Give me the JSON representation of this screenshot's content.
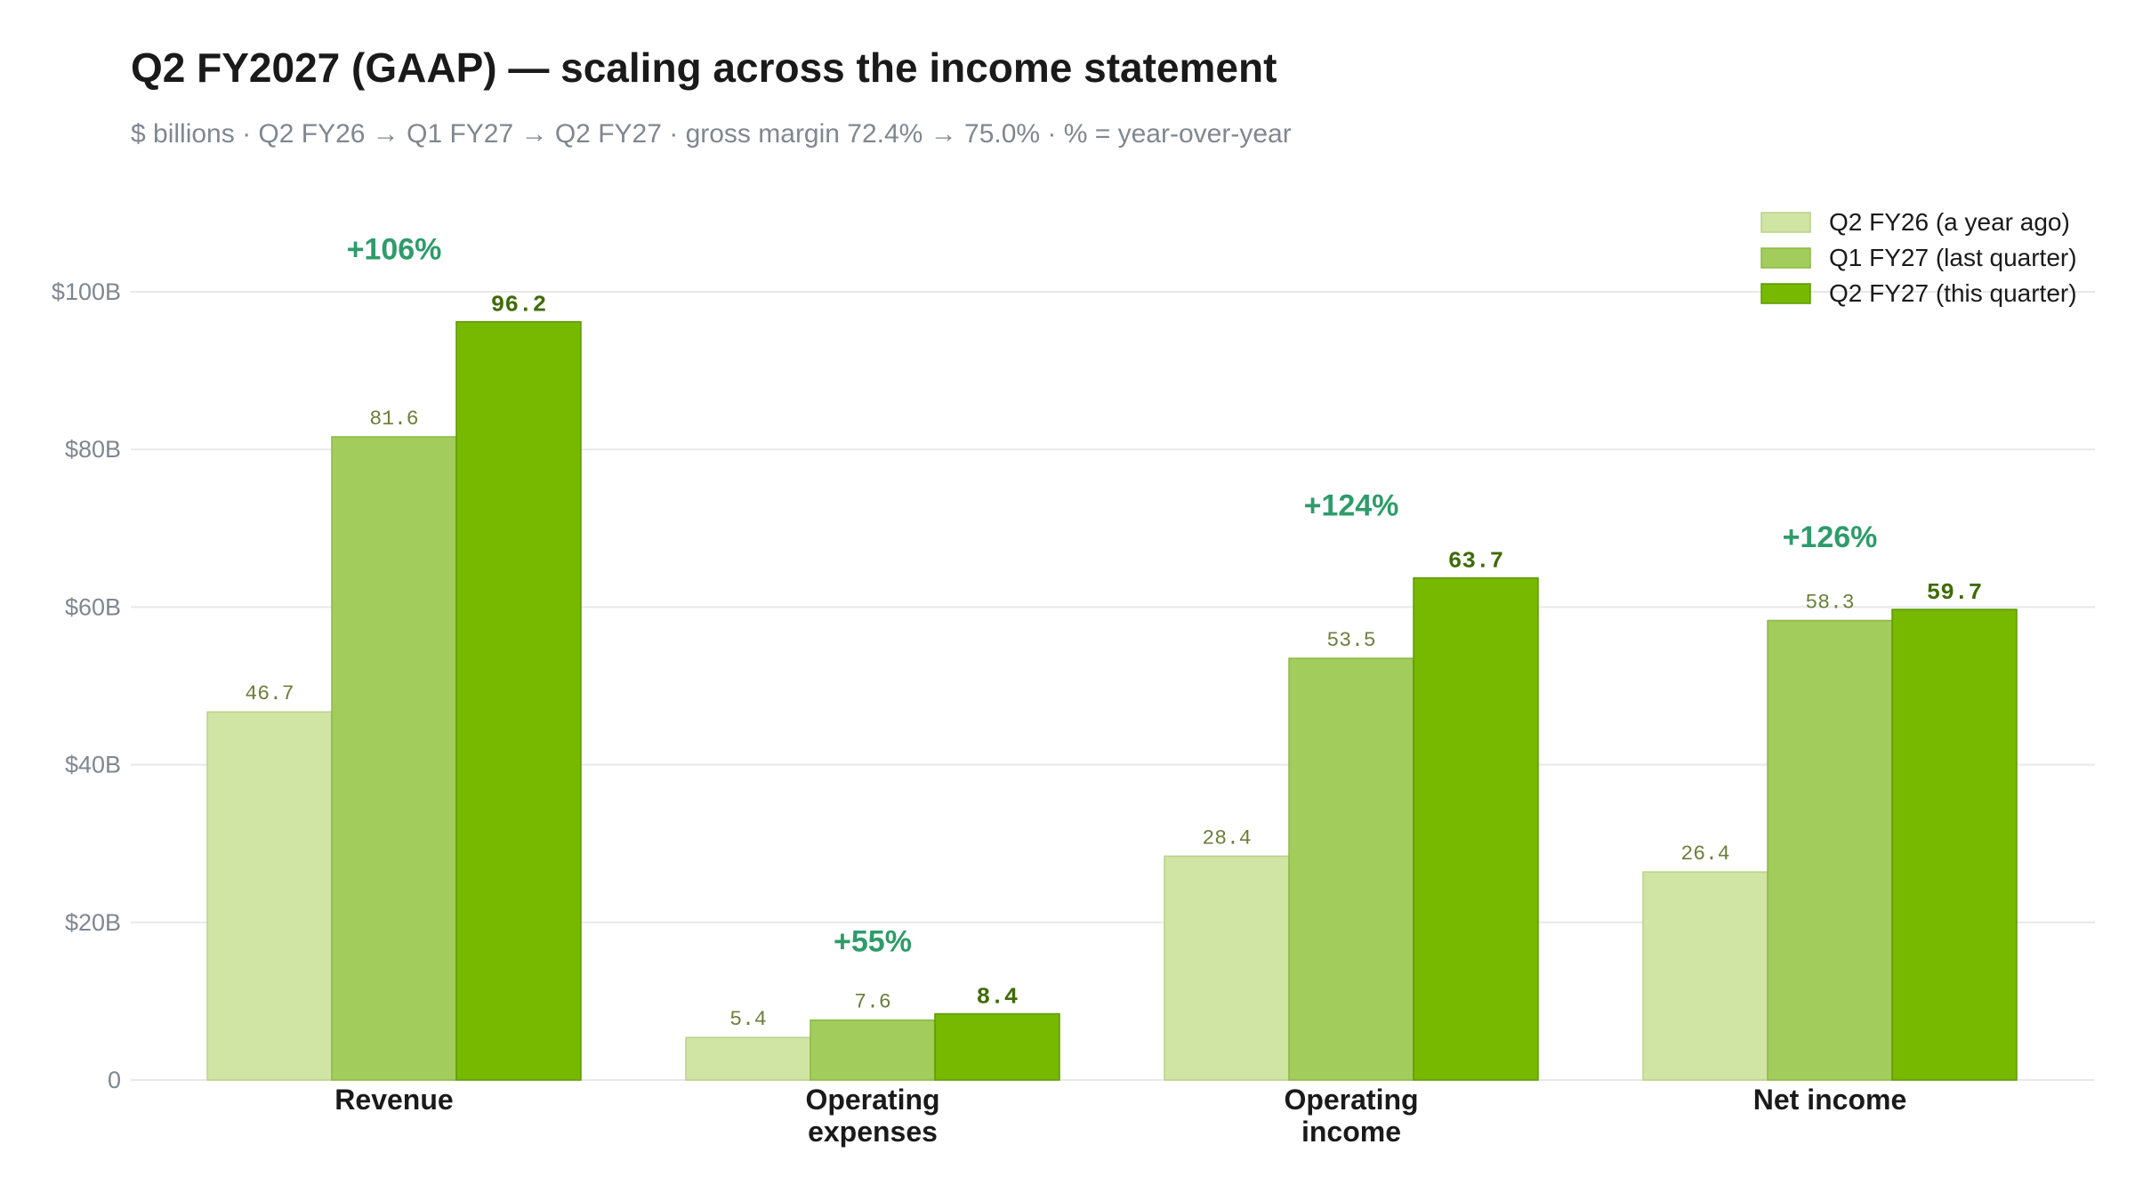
{
  "title": "Q2 FY2027 (GAAP) — scaling across the income statement",
  "subtitle": "$ billions · Q2 FY26 → Q1 FY27 → Q2 FY27 · gross margin 72.4% → 75.0% · % = year-over-year",
  "colors": {
    "q2fy26": "#d0e4a4",
    "q1fy27": "#a2cd5c",
    "q2fy27": "#76b900",
    "yoy": "#2e9c6a"
  },
  "chart_data": {
    "type": "bar",
    "title": "Q2 FY2027 (GAAP) — scaling across the income statement",
    "subtitle": "$ billions · Q2 FY26 → Q1 FY27 → Q2 FY27 · gross margin 72.4% → 75.0% · % = year-over-year",
    "categories": [
      [
        "Revenue"
      ],
      [
        "Operating",
        "expenses"
      ],
      [
        "Operating",
        "income"
      ],
      [
        "Net income"
      ]
    ],
    "series": [
      {
        "name": "Q2 FY26 (a year ago)",
        "values": [
          46.7,
          5.4,
          28.4,
          26.4
        ],
        "labels": [
          "46.7",
          "5.4",
          "28.4",
          "26.4"
        ],
        "color": "#d0e4a4"
      },
      {
        "name": "Q1 FY27 (last quarter)",
        "values": [
          81.6,
          7.6,
          53.5,
          58.3
        ],
        "labels": [
          "81.6",
          "7.6",
          "53.5",
          "58.3"
        ],
        "color": "#a2cd5c"
      },
      {
        "name": "Q2 FY27 (this quarter)",
        "values": [
          96.2,
          8.4,
          63.7,
          59.7
        ],
        "labels": [
          "96.2",
          "8.4",
          "63.7",
          "59.7"
        ],
        "color": "#76b900"
      }
    ],
    "yoy_labels": [
      "+106%",
      "+55%",
      "+124%",
      "+126%"
    ],
    "yticks": [
      {
        "value": 0,
        "label": "0"
      },
      {
        "value": 20,
        "label": "$20B"
      },
      {
        "value": 40,
        "label": "$40B"
      },
      {
        "value": 60,
        "label": "$60B"
      },
      {
        "value": 80,
        "label": "$80B"
      },
      {
        "value": 100,
        "label": "$100B"
      }
    ],
    "ylim": [
      0,
      100
    ],
    "grid": true,
    "legend_position": "top-right"
  }
}
